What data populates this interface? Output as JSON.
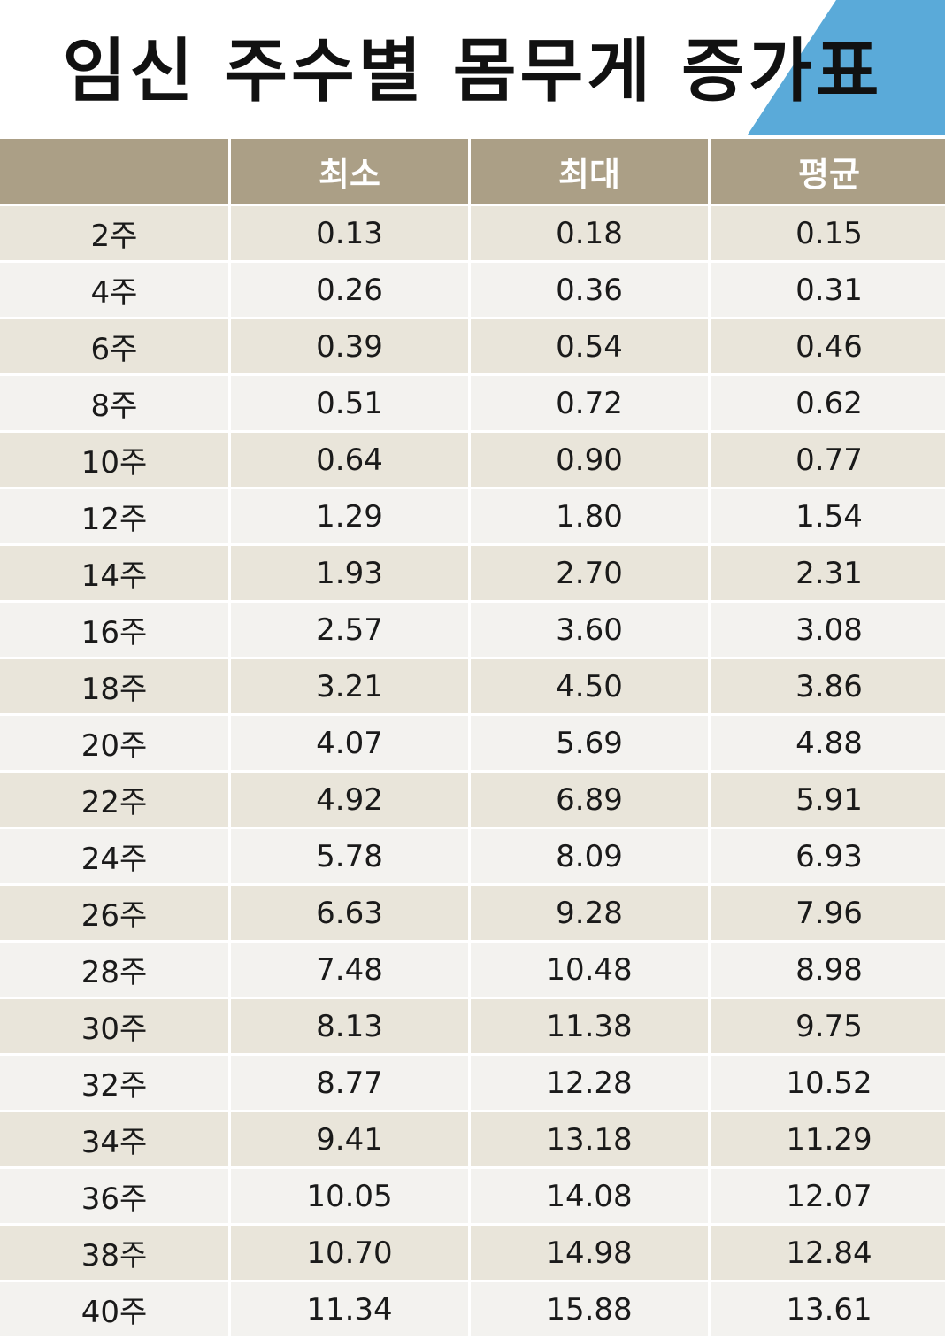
{
  "header": {
    "title": "임신 주수별 몸무게 증가표"
  },
  "table": {
    "columns": [
      "최소",
      "최대",
      "평균"
    ],
    "rows": [
      [
        "2주",
        "0.13",
        "0.18",
        "0.15"
      ],
      [
        "4주",
        "0.26",
        "0.36",
        "0.31"
      ],
      [
        "6주",
        "0.39",
        "0.54",
        "0.46"
      ],
      [
        "8주",
        "0.51",
        "0.72",
        "0.62"
      ],
      [
        "10주",
        "0.64",
        "0.90",
        "0.77"
      ],
      [
        "12주",
        "1.29",
        "1.80",
        "1.54"
      ],
      [
        "14주",
        "1.93",
        "2.70",
        "2.31"
      ],
      [
        "16주",
        "2.57",
        "3.60",
        "3.08"
      ],
      [
        "18주",
        "3.21",
        "4.50",
        "3.86"
      ],
      [
        "20주",
        "4.07",
        "5.69",
        "4.88"
      ],
      [
        "22주",
        "4.92",
        "6.89",
        "5.91"
      ],
      [
        "24주",
        "5.78",
        "8.09",
        "6.93"
      ],
      [
        "26주",
        "6.63",
        "9.28",
        "7.96"
      ],
      [
        "28주",
        "7.48",
        "10.48",
        "8.98"
      ],
      [
        "30주",
        "8.13",
        "11.38",
        "9.75"
      ],
      [
        "32주",
        "8.77",
        "12.28",
        "10.52"
      ],
      [
        "34주",
        "9.41",
        "13.18",
        "11.29"
      ],
      [
        "36주",
        "10.05",
        "14.08",
        "12.07"
      ],
      [
        "38주",
        "10.70",
        "14.98",
        "12.84"
      ],
      [
        "40주",
        "11.34",
        "15.88",
        "13.61"
      ]
    ]
  }
}
